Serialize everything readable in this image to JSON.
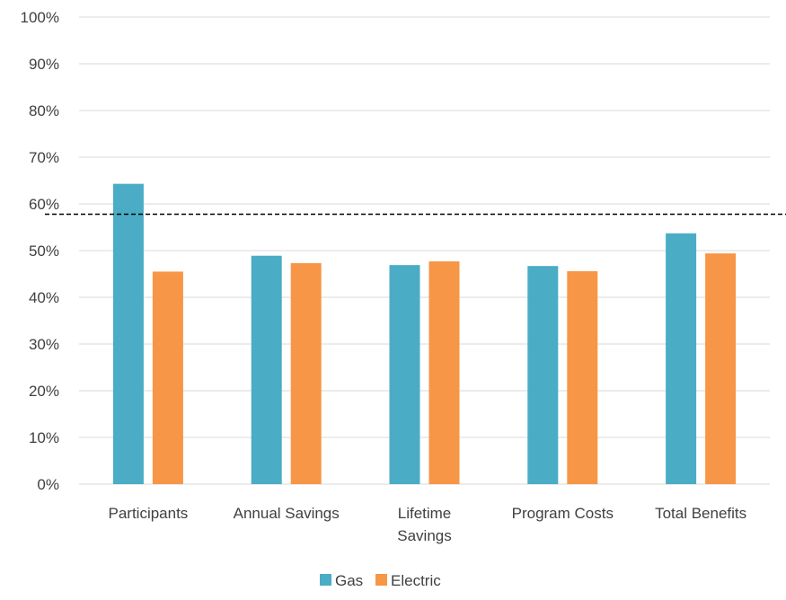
{
  "chart_data": {
    "type": "bar",
    "categories": [
      [
        "Participants"
      ],
      [
        "Annual Savings"
      ],
      [
        "Lifetime",
        "Savings"
      ],
      [
        "Program Costs"
      ],
      [
        "Total Benefits"
      ]
    ],
    "series": [
      {
        "name": "Gas",
        "color": "#4bacc6",
        "values": [
          0.643,
          0.489,
          0.469,
          0.467,
          0.537
        ]
      },
      {
        "name": "Electric",
        "color": "#f79646",
        "values": [
          0.455,
          0.473,
          0.477,
          0.456,
          0.494
        ]
      }
    ],
    "y_ticks": [
      "0%",
      "10%",
      "20%",
      "30%",
      "40%",
      "50%",
      "60%",
      "70%",
      "80%",
      "90%",
      "100%"
    ],
    "ylim": [
      0,
      1
    ],
    "reference_line": {
      "value": 0.578,
      "style": "dashed",
      "color": "#000000"
    },
    "grid": true,
    "legend": "bottom",
    "colors": {
      "gridline": "#d9d9d9",
      "text": "#404040"
    }
  }
}
